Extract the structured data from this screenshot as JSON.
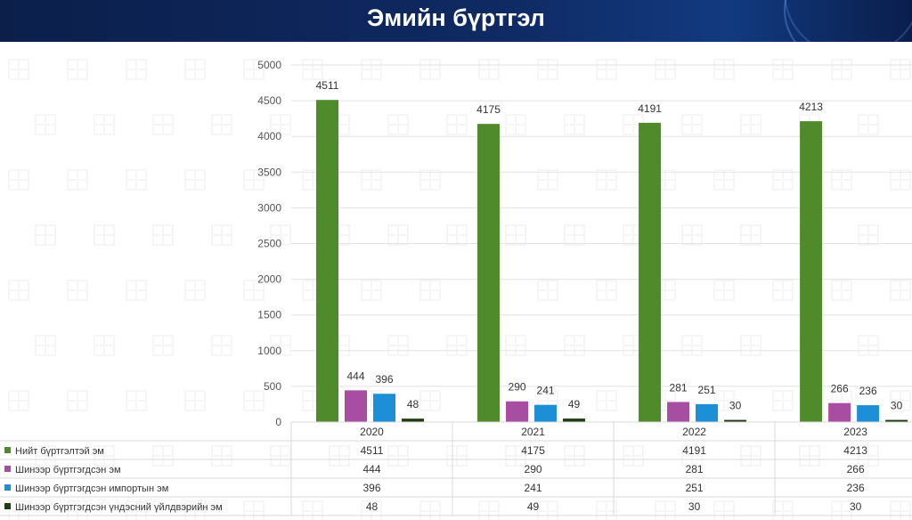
{
  "title": "Эмийн бүртгэл",
  "chart_data": {
    "type": "bar",
    "title": "",
    "xlabel": "",
    "ylabel": "",
    "ylim": [
      0,
      5000
    ],
    "y_ticks": [
      0,
      500,
      1000,
      1500,
      2000,
      2500,
      3000,
      3500,
      4000,
      4500,
      5000
    ],
    "grid": true,
    "legend": "data-table",
    "categories": [
      "2020",
      "2021",
      "2022",
      "2023"
    ],
    "series": [
      {
        "name": "Нийт бүртгэлтэй эм",
        "color": "#4f8a2b",
        "values": [
          4511,
          4175,
          4191,
          4213
        ]
      },
      {
        "name": "Шинээр бүртгэгдсэн эм",
        "color": "#a84ea2",
        "values": [
          444,
          290,
          281,
          266
        ]
      },
      {
        "name": "Шинээр бүртгэгдсэн импортын эм",
        "color": "#1c8fd6",
        "values": [
          396,
          241,
          251,
          236
        ]
      },
      {
        "name": "Шинээр бүртгэгдсэн үндэсний үйлдвэрийн эм",
        "color": "#1f3d12",
        "values": [
          48,
          49,
          30,
          30
        ]
      }
    ]
  }
}
